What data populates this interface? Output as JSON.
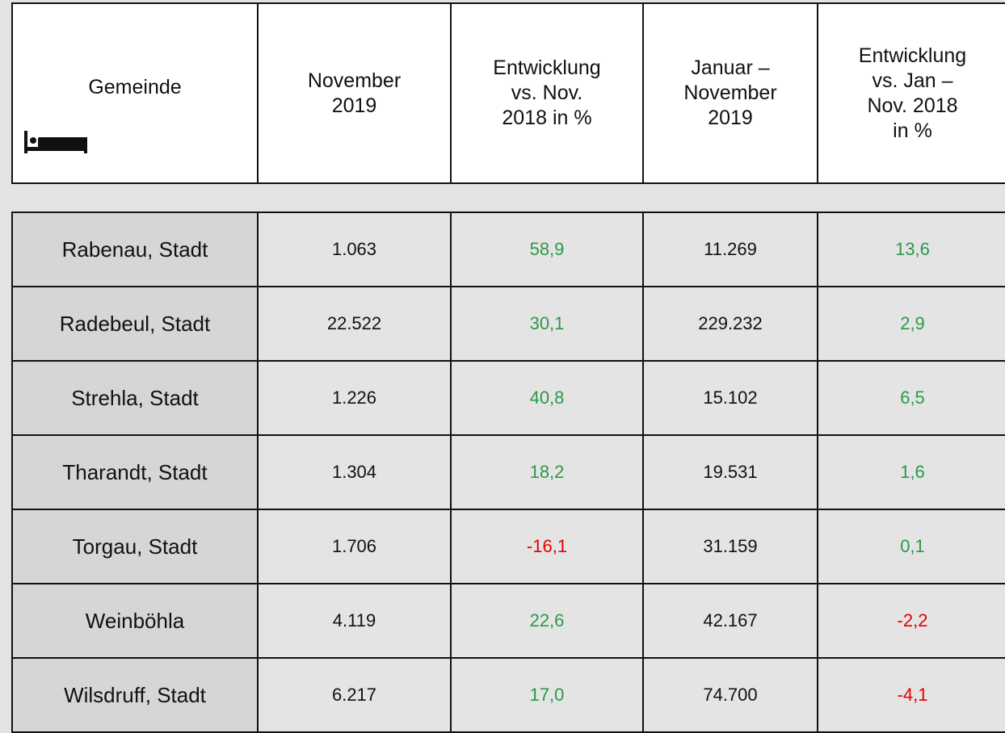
{
  "table": {
    "header": [
      [
        "Gemeinde"
      ],
      [
        "November",
        "2019"
      ],
      [
        "Entwicklung",
        "vs. Nov.",
        "2018 in %"
      ],
      [
        "Januar –",
        "November",
        "2019"
      ],
      [
        "Entwicklung",
        "vs. Jan –",
        "Nov. 2018",
        "in %"
      ]
    ],
    "rows": [
      [
        "Rabenau, Stadt",
        "1.063",
        "58,9",
        "11.269",
        "13,6"
      ],
      [
        "Radebeul, Stadt",
        "22.522",
        "30,1",
        "229.232",
        "2,9"
      ],
      [
        "Strehla, Stadt",
        "1.226",
        "40,8",
        "15.102",
        "6,5"
      ],
      [
        "Tharandt, Stadt",
        "1.304",
        "18,2",
        "19.531",
        "1,6"
      ],
      [
        "Torgau, Stadt",
        "1.706",
        "-16,1",
        "31.159",
        "0,1"
      ],
      [
        "Weinböhla",
        "4.119",
        "22,6",
        "42.167",
        "-2,2"
      ],
      [
        "Wilsdruff, Stadt",
        "6.217",
        "17,0",
        "74.700",
        "-4,1"
      ]
    ],
    "change_columns": [
      2,
      4
    ],
    "colors": {
      "positive": "#2a9a46",
      "negative": "#e60000"
    }
  }
}
